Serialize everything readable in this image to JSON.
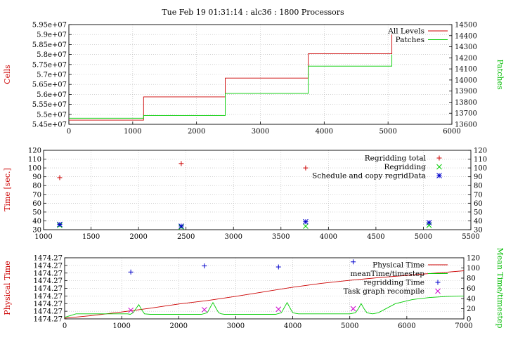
{
  "title": "Tue Feb 19 01:31:14 : alc36 : 1800 Processors",
  "colors": {
    "red": "#cc0000",
    "green": "#00cc00",
    "blue": "#0000cc",
    "magenta": "#cc00cc",
    "grid": "#b8b8b8",
    "axis": "#000000"
  },
  "chart_data": [
    {
      "type": "line",
      "ylabel": "Cells",
      "y2label": "Patches",
      "xlim": [
        0,
        6000
      ],
      "ylim": [
        54450000,
        59500000
      ],
      "y2lim": [
        13600,
        14500
      ],
      "xticks": [
        "0",
        "1000",
        "2000",
        "3000",
        "4000",
        "5000",
        "6000"
      ],
      "yticks": [
        "5.45e+07",
        "5.5e+07",
        "5.55e+07",
        "5.6e+07",
        "5.65e+07",
        "5.7e+07",
        "5.75e+07",
        "5.8e+07",
        "5.85e+07",
        "5.9e+07",
        "5.95e+07"
      ],
      "y2ticks": [
        "13600",
        "13700",
        "13800",
        "13900",
        "14000",
        "14100",
        "14200",
        "14300",
        "14400",
        "14500"
      ],
      "legend_position": "top-right",
      "series": [
        {
          "name": "All Levels",
          "axis": "y",
          "style": "step",
          "x": [
            0,
            1170,
            1170,
            2450,
            2450,
            3750,
            3750,
            5060,
            5060
          ],
          "y": [
            54660000,
            54660000,
            55840000,
            55840000,
            56790000,
            56790000,
            58020000,
            58020000,
            59000000
          ]
        },
        {
          "name": "Patches",
          "axis": "y2",
          "style": "step",
          "x": [
            0,
            1170,
            1170,
            2450,
            2450,
            3750,
            3750,
            5060,
            5060
          ],
          "y": [
            13655,
            13655,
            13680,
            13680,
            13878,
            13878,
            14125,
            14125,
            14230
          ]
        }
      ]
    },
    {
      "type": "scatter",
      "ylabel": "Time [sec.]",
      "xlim": [
        1000,
        5500
      ],
      "ylim": [
        30,
        120
      ],
      "xticks": [
        "1000",
        "1500",
        "2000",
        "2500",
        "3000",
        "3500",
        "4000",
        "4500",
        "5000",
        "5500"
      ],
      "yticks": [
        "30",
        "40",
        "50",
        "60",
        "70",
        "80",
        "90",
        "100",
        "110",
        "120"
      ],
      "y2ticks": [
        "30",
        "40",
        "50",
        "60",
        "70",
        "80",
        "90",
        "100",
        "110",
        "120"
      ],
      "legend_position": "top-right",
      "series": [
        {
          "name": "Regridding total",
          "marker": "plus",
          "x": [
            1170,
            2450,
            3760
          ],
          "y": [
            89,
            105,
            100
          ]
        },
        {
          "name": "Regridding",
          "marker": "cross",
          "x": [
            1170,
            2450,
            3760,
            5060
          ],
          "y": [
            35,
            33,
            34,
            35
          ]
        },
        {
          "name": "Schedule and copy regridData",
          "marker": "star",
          "x": [
            1170,
            2450,
            3760,
            5060
          ],
          "y": [
            36,
            34,
            39,
            38
          ]
        }
      ]
    },
    {
      "type": "line",
      "ylabel": "Physical Time",
      "y2label": "Mean Time/timestep",
      "xlim": [
        0,
        7000
      ],
      "ylim": [
        0,
        8
      ],
      "y2lim": [
        0,
        120
      ],
      "xticks": [
        "0",
        "1000",
        "2000",
        "3000",
        "4000",
        "5000",
        "6000",
        "7000"
      ],
      "yticks": [
        "1474.27",
        "1474.27",
        "1474.27",
        "1474.27",
        "1474.27",
        "1474.27",
        "1474.27",
        "1474.27",
        "1474.27"
      ],
      "y2ticks": [
        "0",
        "20",
        "40",
        "60",
        "80",
        "100",
        "120"
      ],
      "legend_position": "top-right",
      "series": [
        {
          "name": "Physical Time",
          "axis": "y",
          "style": "line",
          "x": [
            0,
            500,
            1000,
            1500,
            2000,
            2500,
            3000,
            3500,
            4000,
            4500,
            5000,
            5500,
            6000,
            6500,
            7000
          ],
          "y": [
            0.1,
            0.45,
            0.9,
            1.4,
            1.95,
            2.4,
            2.95,
            3.55,
            4.15,
            4.65,
            5.05,
            5.4,
            5.7,
            6.0,
            6.3
          ]
        },
        {
          "name": "meanTime/timestep",
          "axis": "y2",
          "style": "line",
          "x": [
            0,
            200,
            1100,
            1150,
            1200,
            1250,
            1300,
            1350,
            1400,
            1500,
            2400,
            2500,
            2550,
            2600,
            2650,
            2700,
            2750,
            2800,
            3700,
            3800,
            3850,
            3900,
            3950,
            4000,
            4100,
            5000,
            5100,
            5150,
            5200,
            5250,
            5300,
            5400,
            5500,
            5800,
            6100,
            6400,
            6700,
            7000
          ],
          "y": [
            3,
            10,
            10,
            9,
            12,
            20,
            28,
            18,
            10,
            9,
            9,
            12,
            22,
            32,
            22,
            12,
            10,
            9,
            9,
            12,
            22,
            32,
            22,
            12,
            10,
            10,
            12,
            20,
            30,
            20,
            12,
            10,
            12,
            30,
            38,
            42,
            44,
            45
          ]
        },
        {
          "name": "regridding Time",
          "axis": "y2",
          "style": "marker",
          "marker": "plus",
          "x": [
            1160,
            2450,
            3750,
            5060
          ],
          "y": [
            92,
            104,
            102,
            112
          ]
        },
        {
          "name": "Task graph recompile",
          "axis": "y2",
          "style": "marker",
          "marker": "cross",
          "x": [
            1160,
            2450,
            3750,
            5060
          ],
          "y": [
            17,
            18,
            19,
            20
          ]
        }
      ]
    }
  ]
}
